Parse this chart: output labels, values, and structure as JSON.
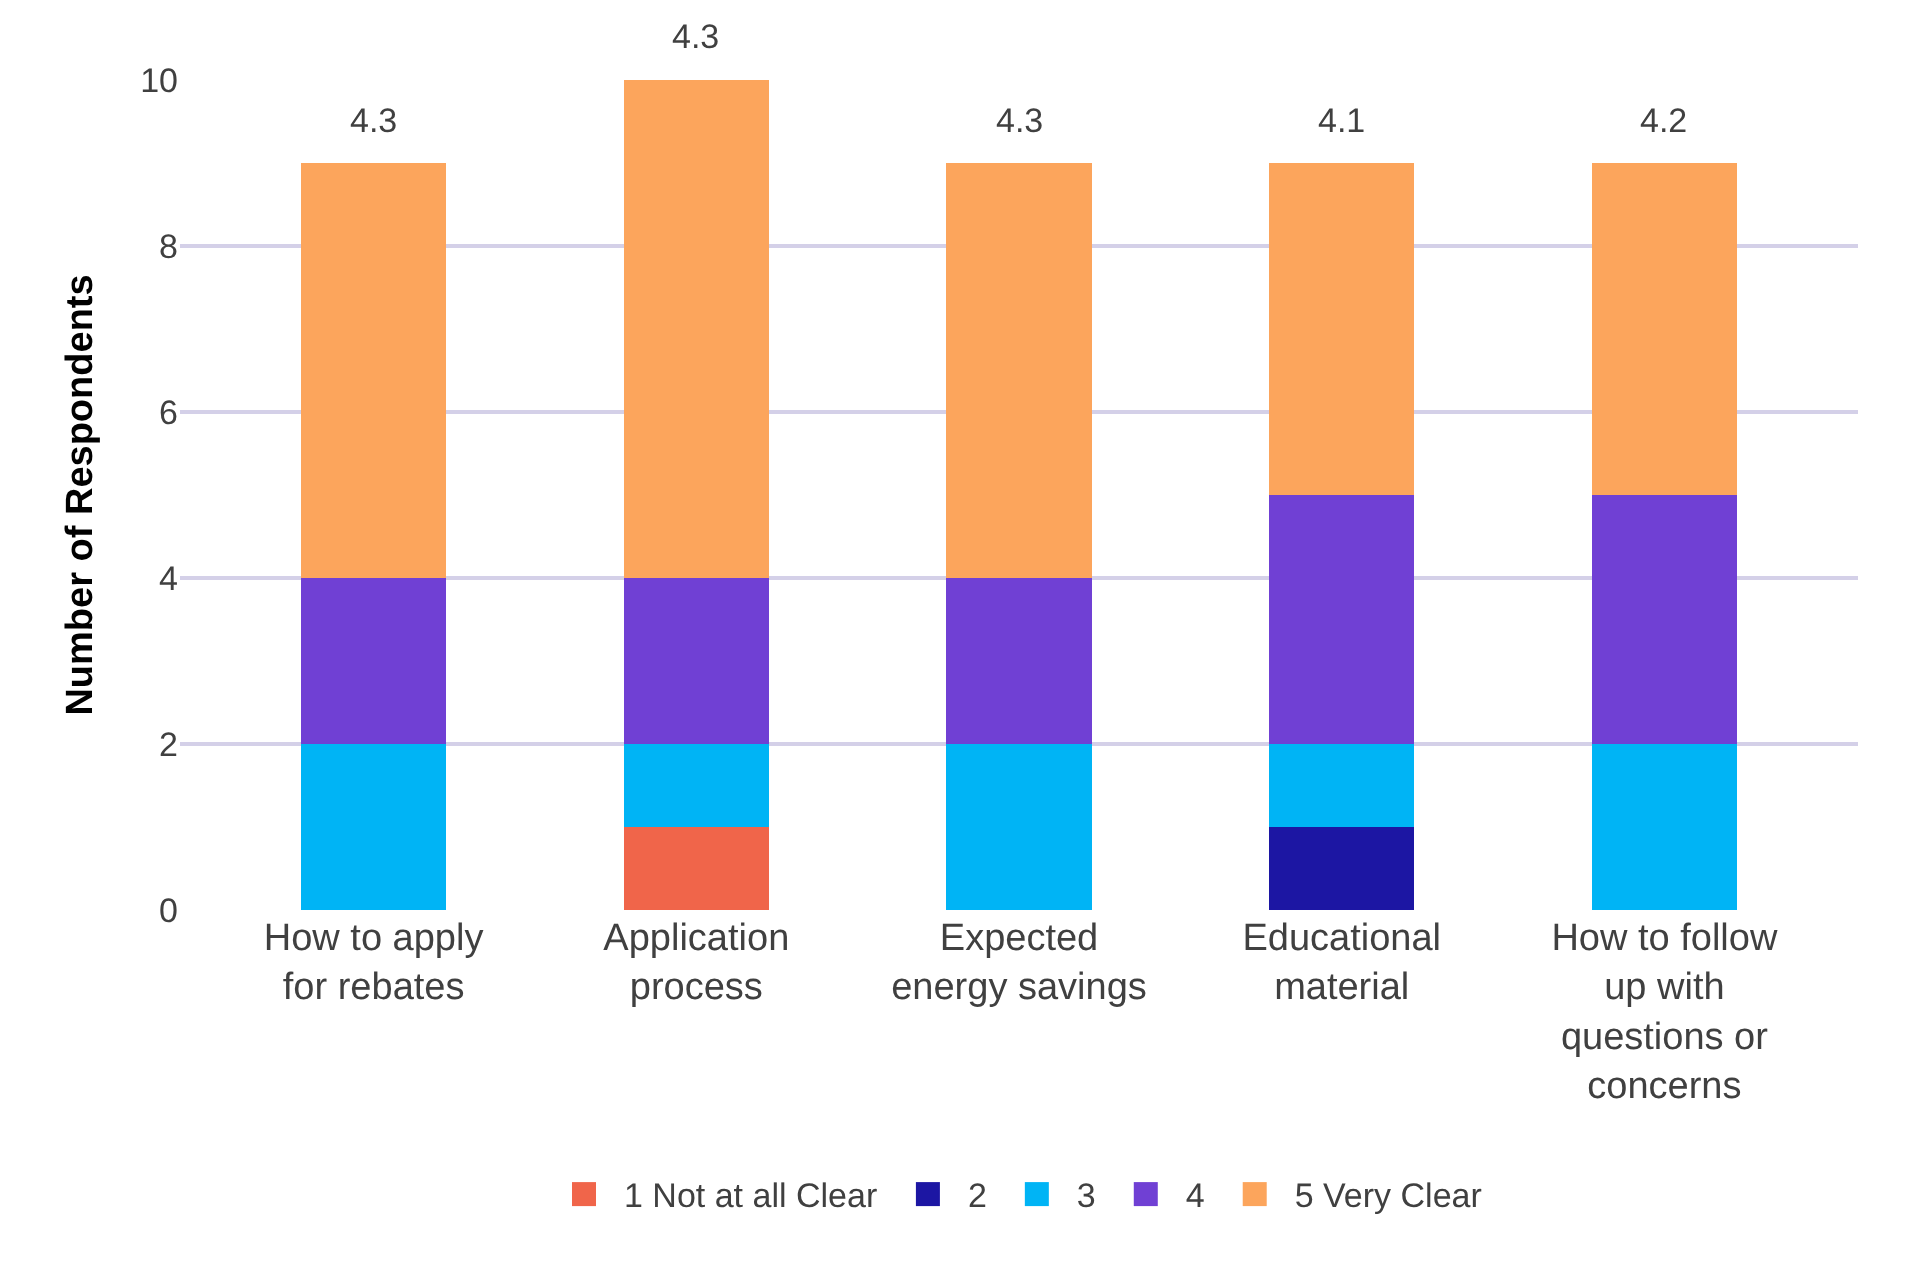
{
  "chart_data": {
    "type": "bar",
    "stacked": true,
    "ylabel": "Number of Respondents",
    "categories": [
      "How to apply for rebates",
      "Application process",
      "Expected energy savings",
      "Educational material",
      "How to follow up with questions or concerns"
    ],
    "series": [
      {
        "name": "1 Not at all Clear",
        "color": "#f0654a",
        "values": [
          0,
          1,
          0,
          0,
          0
        ]
      },
      {
        "name": "2",
        "color": "#1c16a3",
        "values": [
          0,
          0,
          0,
          1,
          0
        ]
      },
      {
        "name": "3",
        "color": "#00b4f5",
        "values": [
          2,
          1,
          2,
          1,
          2
        ]
      },
      {
        "name": "4",
        "color": "#7040d4",
        "values": [
          2,
          2,
          2,
          3,
          3
        ]
      },
      {
        "name": "5 Very Clear",
        "color": "#fca55c",
        "values": [
          5,
          6,
          5,
          4,
          4
        ]
      }
    ],
    "annotations": [
      {
        "text": "4.3",
        "x": "How to apply for rebates",
        "y": 9
      },
      {
        "text": "4.3",
        "x": "Application process",
        "y": 10
      },
      {
        "text": "4.3",
        "x": "Expected energy savings",
        "y": 9
      },
      {
        "text": "4.1",
        "x": "Educational material",
        "y": 9
      },
      {
        "text": "4.2",
        "x": "How to follow up with questions or concerns",
        "y": 9
      }
    ],
    "ylim": [
      0,
      10
    ],
    "yticks": [
      0,
      2,
      4,
      6,
      8,
      10
    ],
    "grid": "y",
    "legend": "bottom"
  }
}
